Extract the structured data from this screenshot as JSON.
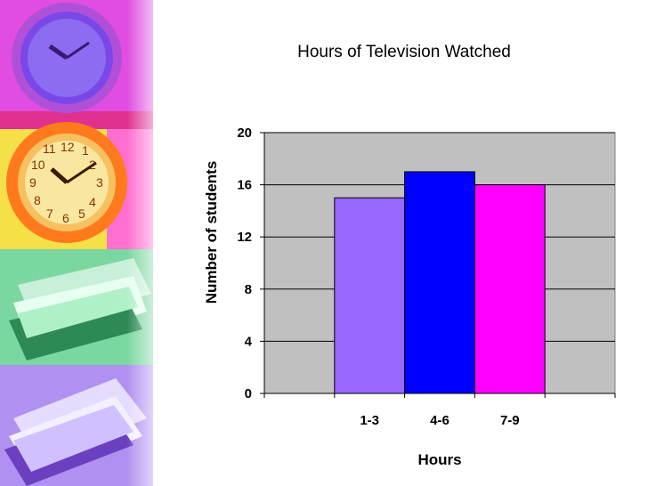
{
  "chart_data": {
    "type": "bar",
    "title": "Hours of Television Watched",
    "xlabel": "Hours",
    "ylabel": "Number of students",
    "categories": [
      "1-3",
      "4-6",
      "7-9"
    ],
    "values": [
      15,
      17,
      16
    ],
    "bar_colors": [
      "#9966ff",
      "#0000ff",
      "#ff00ff"
    ],
    "ylim": [
      0,
      20
    ],
    "yticks": [
      "0",
      "4",
      "8",
      "12",
      "16",
      "20"
    ],
    "grid": true,
    "plot_background": "#c0c0c0"
  }
}
